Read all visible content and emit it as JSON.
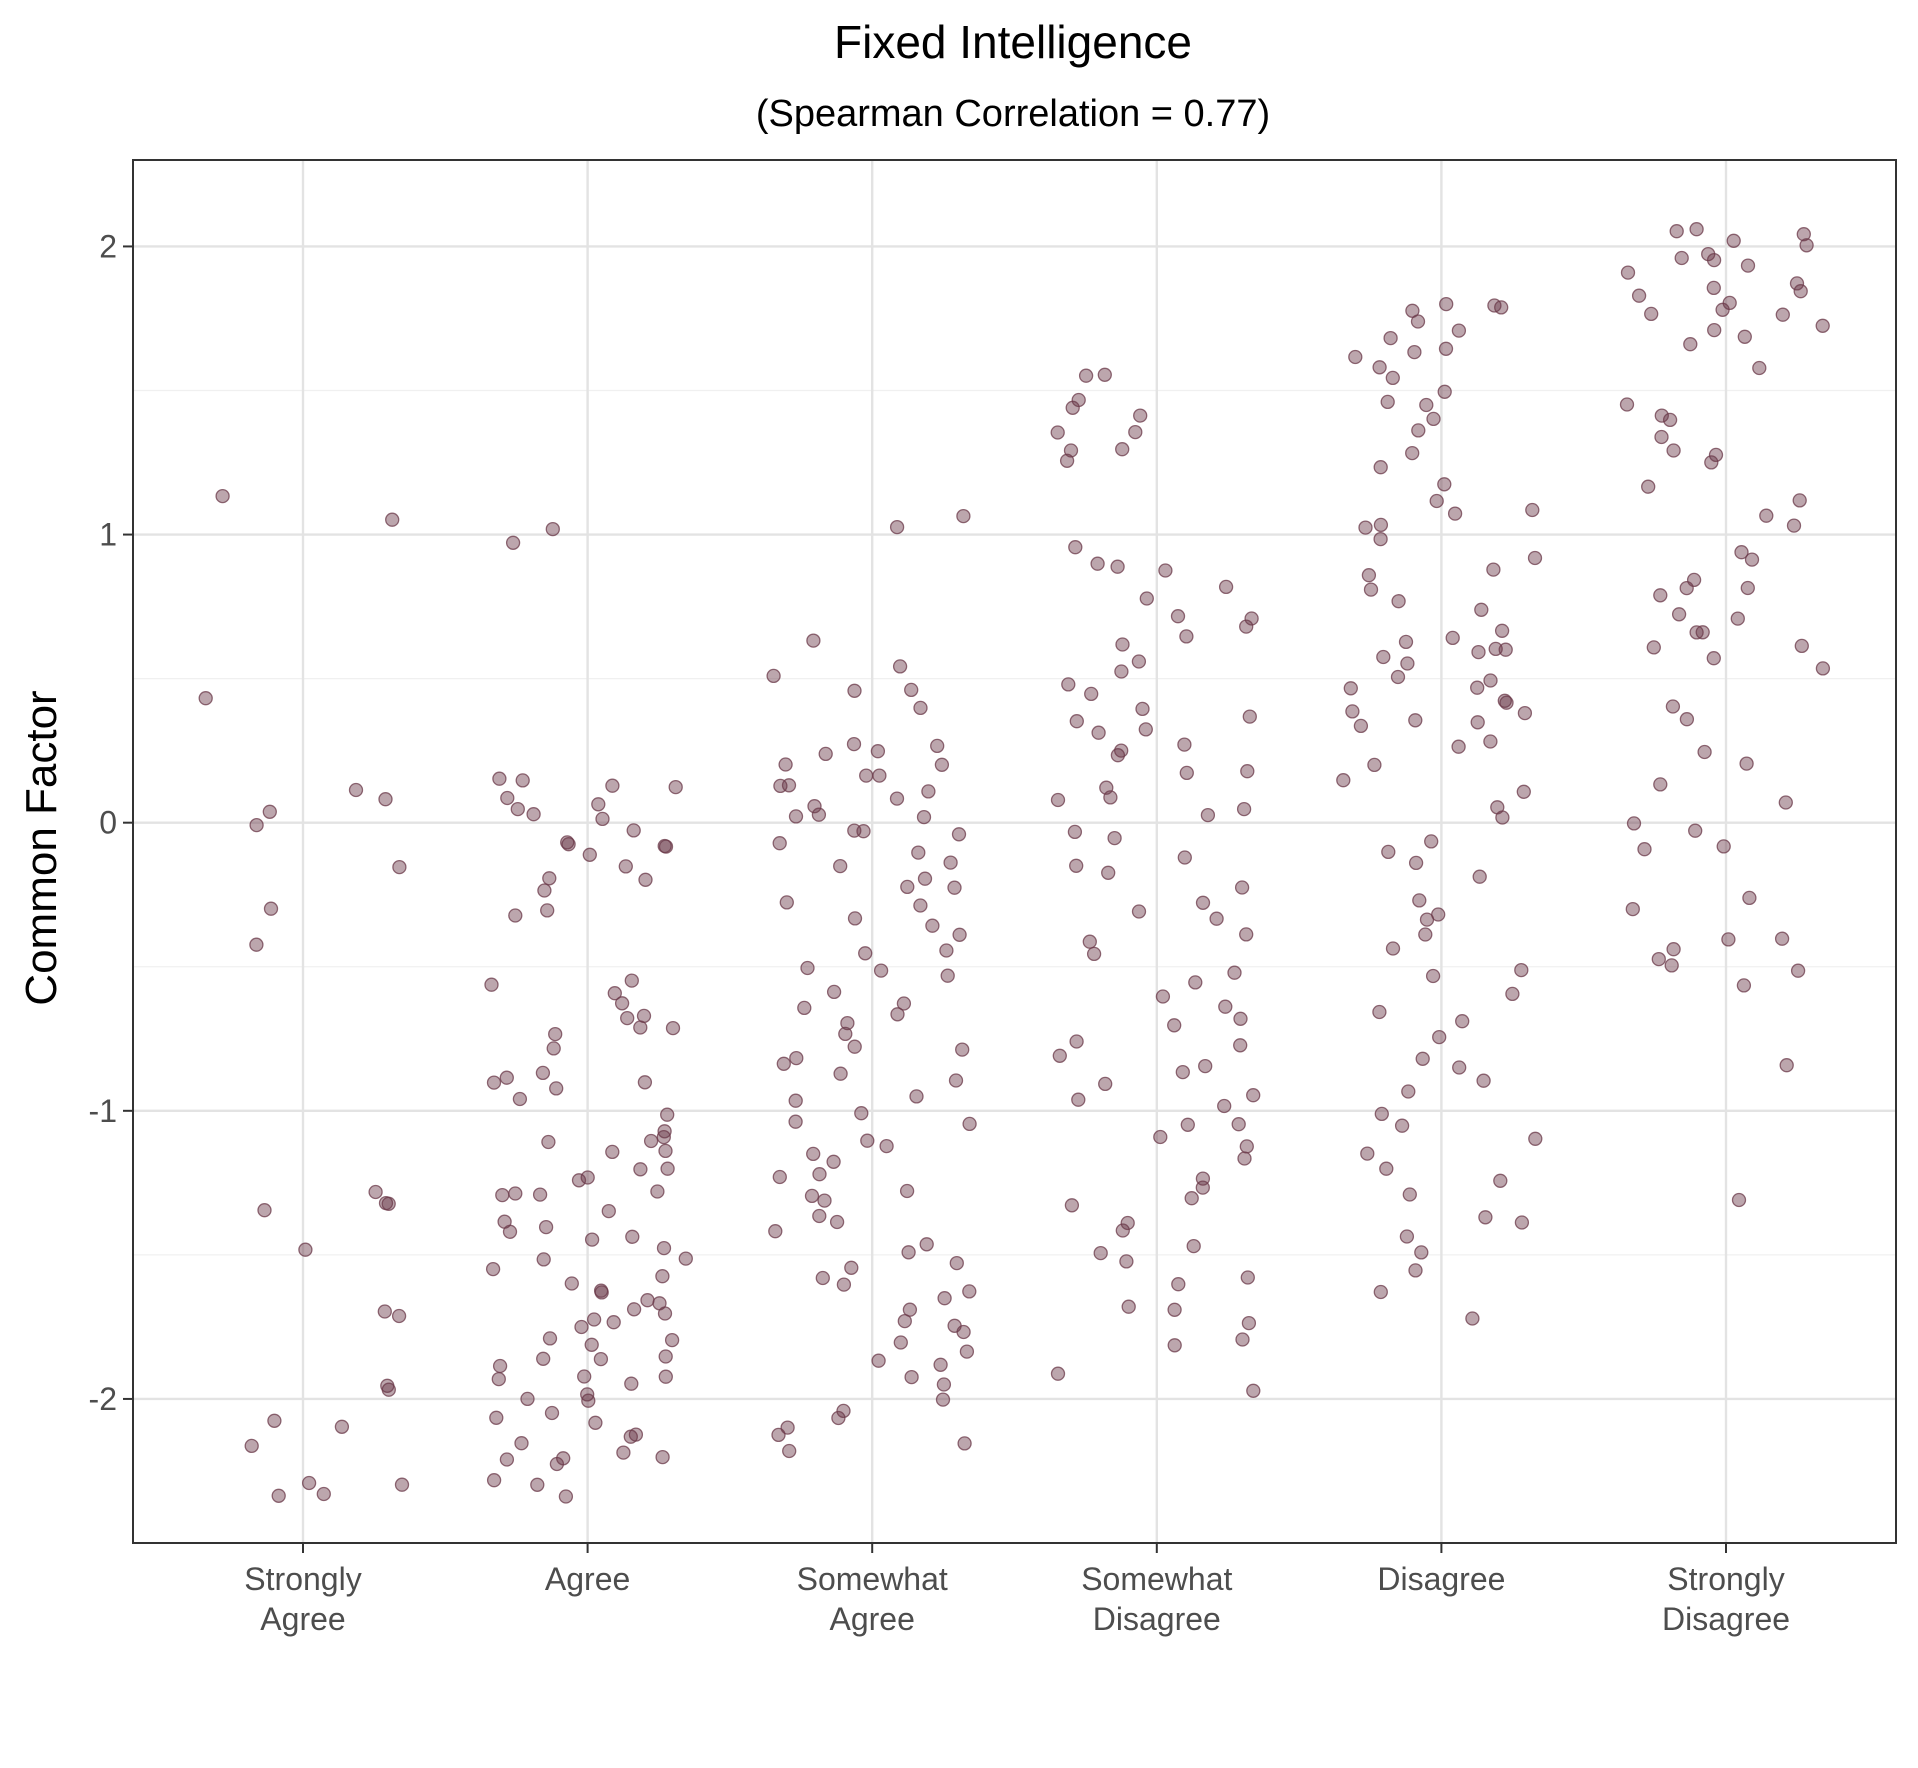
{
  "chart_data": {
    "type": "scatter",
    "title": "Fixed Intelligence",
    "subtitle": "(Spearman Correlation = 0.77)",
    "xlabel": "",
    "ylabel": "Common Factor",
    "categories": [
      [
        "Strongly",
        "Agree"
      ],
      [
        "Agree"
      ],
      [
        "Somewhat",
        "Agree"
      ],
      [
        "Somewhat",
        "Disagree"
      ],
      [
        "Disagree"
      ],
      [
        "Strongly",
        "Disagree"
      ]
    ],
    "ylim": [
      -2.5,
      2.3
    ],
    "yticks": [
      -2,
      -1,
      0,
      1,
      2
    ],
    "grid": true,
    "jitter": "horizontal",
    "point_color": "#6b3a4a",
    "point_opacity": 0.45,
    "series": [
      {
        "category": "Strongly Agree",
        "values": [
          1.12,
          1.07,
          0.45,
          0.11,
          0.07,
          0.05,
          -0.02,
          -0.14,
          -0.28,
          -0.41,
          -1.27,
          -1.31,
          -1.34,
          -1.35,
          -1.47,
          -1.69,
          -1.73,
          -1.95,
          -1.97,
          -2.06,
          -2.1,
          -2.15,
          -2.29,
          -2.3,
          -2.33,
          -2.34
        ]
      },
      {
        "category": "Agree",
        "values": [
          1.01,
          0.97,
          0.15,
          0.14,
          0.13,
          0.13,
          0.1,
          0.08,
          0.05,
          0.04,
          0.03,
          -0.03,
          -0.06,
          -0.07,
          -0.08,
          -0.1,
          -0.12,
          -0.14,
          -0.19,
          -0.2,
          -0.23,
          -0.31,
          -0.32,
          -0.53,
          -0.56,
          -0.59,
          -0.61,
          -0.66,
          -0.68,
          -0.72,
          -0.72,
          -0.73,
          -0.78,
          -0.87,
          -0.88,
          -0.9,
          -0.91,
          -0.93,
          -0.94,
          -1.02,
          -1.06,
          -1.09,
          -1.1,
          -1.11,
          -1.14,
          -1.16,
          -1.19,
          -1.21,
          -1.24,
          -1.25,
          -1.26,
          -1.28,
          -1.3,
          -1.31,
          -1.35,
          -1.37,
          -1.39,
          -1.41,
          -1.43,
          -1.44,
          -1.47,
          -1.5,
          -1.53,
          -1.56,
          -1.58,
          -1.6,
          -1.62,
          -1.63,
          -1.65,
          -1.67,
          -1.68,
          -1.7,
          -1.72,
          -1.74,
          -1.76,
          -1.78,
          -1.8,
          -1.82,
          -1.84,
          -1.85,
          -1.87,
          -1.89,
          -1.91,
          -1.93,
          -1.95,
          -1.96,
          -1.98,
          -2.0,
          -2.02,
          -2.04,
          -2.06,
          -2.09,
          -2.11,
          -2.13,
          -2.15,
          -2.17,
          -2.19,
          -2.2,
          -2.22,
          -2.24,
          -2.3,
          -2.31,
          -2.34
        ]
      },
      {
        "category": "Somewhat Agree",
        "values": [
          1.06,
          1.03,
          0.65,
          0.56,
          0.52,
          0.48,
          0.46,
          0.4,
          0.27,
          0.26,
          0.25,
          0.24,
          0.22,
          0.2,
          0.18,
          0.16,
          0.14,
          0.12,
          0.1,
          0.08,
          0.06,
          0.04,
          0.02,
          0.0,
          -0.02,
          -0.04,
          -0.06,
          -0.08,
          -0.1,
          -0.12,
          -0.15,
          -0.18,
          -0.21,
          -0.24,
          -0.27,
          -0.3,
          -0.33,
          -0.36,
          -0.4,
          -0.43,
          -0.46,
          -0.49,
          -0.52,
          -0.55,
          -0.58,
          -0.61,
          -0.64,
          -0.67,
          -0.7,
          -0.73,
          -0.76,
          -0.79,
          -0.82,
          -0.85,
          -0.88,
          -0.91,
          -0.94,
          -0.97,
          -1.0,
          -1.03,
          -1.06,
          -1.09,
          -1.12,
          -1.15,
          -1.18,
          -1.21,
          -1.24,
          -1.27,
          -1.3,
          -1.33,
          -1.36,
          -1.39,
          -1.42,
          -1.45,
          -1.48,
          -1.51,
          -1.54,
          -1.57,
          -1.6,
          -1.63,
          -1.66,
          -1.69,
          -1.72,
          -1.75,
          -1.78,
          -1.81,
          -1.83,
          -1.85,
          -1.88,
          -1.92,
          -1.96,
          -2.0,
          -2.03,
          -2.06,
          -2.09,
          -2.12,
          -2.16,
          -2.18
        ]
      },
      {
        "category": "Somewhat Disagree",
        "values": [
          1.56,
          1.55,
          1.47,
          1.43,
          1.4,
          1.37,
          1.35,
          1.31,
          1.3,
          1.26,
          0.94,
          0.89,
          0.88,
          0.87,
          0.8,
          0.77,
          0.73,
          0.7,
          0.68,
          0.66,
          0.6,
          0.56,
          0.52,
          0.47,
          0.43,
          0.4,
          0.38,
          0.36,
          0.33,
          0.3,
          0.27,
          0.25,
          0.22,
          0.19,
          0.16,
          0.13,
          0.1,
          0.07,
          0.04,
          0.01,
          -0.03,
          -0.07,
          -0.11,
          -0.15,
          -0.19,
          -0.23,
          -0.27,
          -0.31,
          -0.35,
          -0.39,
          -0.43,
          -0.47,
          -0.51,
          -0.55,
          -0.59,
          -0.63,
          -0.67,
          -0.71,
          -0.75,
          -0.79,
          -0.82,
          -0.85,
          -0.88,
          -0.91,
          -0.94,
          -0.97,
          -1.0,
          -1.03,
          -1.06,
          -1.1,
          -1.14,
          -1.18,
          -1.22,
          -1.26,
          -1.3,
          -1.34,
          -1.38,
          -1.42,
          -1.46,
          -1.5,
          -1.54,
          -1.58,
          -1.62,
          -1.66,
          -1.7,
          -1.74,
          -1.78,
          -1.82,
          -1.91,
          -1.96
        ]
      },
      {
        "category": "Disagree",
        "values": [
          1.8,
          1.79,
          1.78,
          1.76,
          1.74,
          1.72,
          1.69,
          1.66,
          1.63,
          1.6,
          1.57,
          1.54,
          1.51,
          1.48,
          1.45,
          1.42,
          1.35,
          1.3,
          1.24,
          1.18,
          1.13,
          1.1,
          1.07,
          1.04,
          1.01,
          0.97,
          0.93,
          0.89,
          0.85,
          0.81,
          0.77,
          0.73,
          0.68,
          0.66,
          0.64,
          0.62,
          0.6,
          0.58,
          0.56,
          0.54,
          0.52,
          0.5,
          0.48,
          0.46,
          0.44,
          0.42,
          0.4,
          0.38,
          0.36,
          0.34,
          0.32,
          0.3,
          0.25,
          0.2,
          0.15,
          0.1,
          0.05,
          0.0,
          -0.05,
          -0.1,
          -0.15,
          -0.2,
          -0.25,
          -0.3,
          -0.35,
          -0.4,
          -0.45,
          -0.5,
          -0.55,
          -0.6,
          -0.65,
          -0.7,
          -0.75,
          -0.8,
          -0.85,
          -0.9,
          -0.95,
          -1.0,
          -1.05,
          -1.1,
          -1.15,
          -1.2,
          -1.25,
          -1.3,
          -1.35,
          -1.4,
          -1.45,
          -1.5,
          -1.55,
          -1.62,
          -1.74
        ]
      },
      {
        "category": "Strongly Disagree",
        "values": [
          2.06,
          2.05,
          2.04,
          2.03,
          2.01,
          1.99,
          1.97,
          1.95,
          1.93,
          1.91,
          1.89,
          1.87,
          1.85,
          1.83,
          1.81,
          1.79,
          1.77,
          1.75,
          1.73,
          1.71,
          1.69,
          1.67,
          1.56,
          1.44,
          1.41,
          1.38,
          1.35,
          1.3,
          1.28,
          1.24,
          1.18,
          1.12,
          1.06,
          1.02,
          0.95,
          0.9,
          0.86,
          0.83,
          0.8,
          0.77,
          0.74,
          0.71,
          0.68,
          0.65,
          0.62,
          0.59,
          0.56,
          0.53,
          0.4,
          0.35,
          0.25,
          0.21,
          0.13,
          0.08,
          0.0,
          -0.04,
          -0.08,
          -0.11,
          -0.28,
          -0.31,
          -0.39,
          -0.41,
          -0.44,
          -0.47,
          -0.5,
          -0.52,
          -0.56,
          -0.84,
          -1.3
        ]
      }
    ]
  }
}
